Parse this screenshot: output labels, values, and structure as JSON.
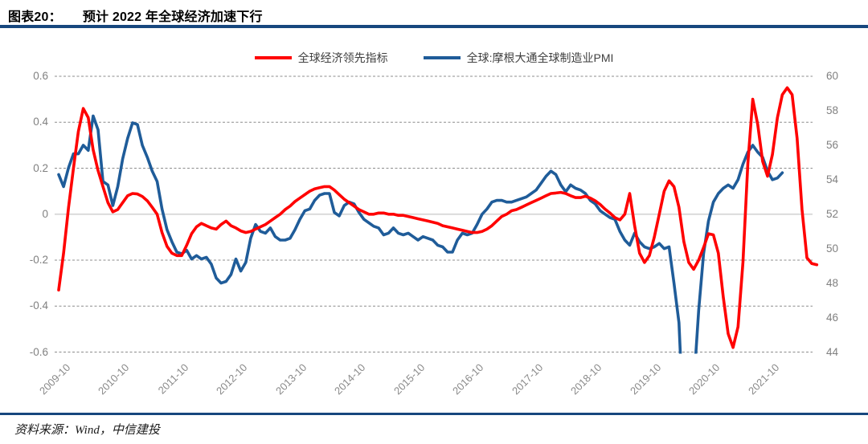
{
  "header": {
    "figure_label": "图表20：",
    "figure_title": "预计 2022 年全球经济加速下行"
  },
  "footer": {
    "source": "资料来源：Wind，中信建投"
  },
  "colors": {
    "rule_navy": "#17477E",
    "series_red": "#FF0000",
    "series_blue": "#1F5C99",
    "grid_dash": "#8C8C8C",
    "grid_zero": "#D9D9D9",
    "axis_label_gray": "#808080"
  },
  "legend": [
    {
      "label": "全球经济领先指标",
      "color": "#FF0000"
    },
    {
      "label": "全球:摩根大通全球制造业PMI",
      "color": "#1F5C99"
    }
  ],
  "chart_data": {
    "type": "line",
    "x_start": "2009-10",
    "x_frequency": "monthly",
    "x_tick_labels": [
      "2009-10",
      "2010-10",
      "2011-10",
      "2012-10",
      "2013-10",
      "2014-10",
      "2015-10",
      "2016-10",
      "2017-10",
      "2018-10",
      "2019-10",
      "2020-10",
      "2021-10"
    ],
    "left_axis": {
      "min": -0.6,
      "max": 0.6,
      "ticks": [
        "0.6",
        "0.4",
        "0.2",
        "0",
        "-0.2",
        "-0.4",
        "-0.6"
      ]
    },
    "right_axis": {
      "min": 44,
      "max": 60,
      "ticks": [
        "60",
        "58",
        "56",
        "54",
        "52",
        "50",
        "48",
        "46",
        "44"
      ]
    },
    "grid": {
      "horizontal": "dashed",
      "zero_line": "solid"
    },
    "legend_position": "top-center",
    "series": [
      {
        "name": "全球经济领先指标",
        "axis": "left",
        "color": "#FF0000",
        "values": [
          -0.33,
          -0.17,
          0.03,
          0.2,
          0.36,
          0.46,
          0.42,
          0.28,
          0.19,
          0.12,
          0.05,
          0.01,
          0.02,
          0.05,
          0.08,
          0.09,
          0.088,
          0.077,
          0.058,
          0.03,
          0.0,
          -0.08,
          -0.14,
          -0.17,
          -0.18,
          -0.18,
          -0.135,
          -0.085,
          -0.055,
          -0.04,
          -0.05,
          -0.06,
          -0.065,
          -0.045,
          -0.03,
          -0.05,
          -0.06,
          -0.073,
          -0.08,
          -0.075,
          -0.065,
          -0.055,
          -0.045,
          -0.03,
          -0.015,
          0.0,
          0.02,
          0.035,
          0.055,
          0.07,
          0.085,
          0.1,
          0.11,
          0.115,
          0.12,
          0.12,
          0.105,
          0.085,
          0.065,
          0.05,
          0.035,
          0.02,
          0.01,
          0.0,
          0.0,
          0.005,
          0.005,
          0.0,
          0.0,
          -0.005,
          -0.005,
          -0.01,
          -0.015,
          -0.02,
          -0.025,
          -0.03,
          -0.035,
          -0.04,
          -0.05,
          -0.055,
          -0.06,
          -0.065,
          -0.07,
          -0.075,
          -0.08,
          -0.08,
          -0.075,
          -0.065,
          -0.05,
          -0.03,
          -0.01,
          0.0,
          0.015,
          0.02,
          0.03,
          0.04,
          0.05,
          0.06,
          0.07,
          0.08,
          0.09,
          0.092,
          0.095,
          0.09,
          0.08,
          0.072,
          0.072,
          0.078,
          0.07,
          0.058,
          0.042,
          0.022,
          0.005,
          -0.015,
          -0.025,
          0.0,
          0.09,
          -0.05,
          -0.17,
          -0.21,
          -0.18,
          -0.1,
          0.0,
          0.1,
          0.145,
          0.12,
          0.03,
          -0.12,
          -0.21,
          -0.24,
          -0.2,
          -0.145,
          -0.085,
          -0.09,
          -0.17,
          -0.36,
          -0.52,
          -0.58,
          -0.49,
          -0.21,
          0.22,
          0.5,
          0.39,
          0.23,
          0.165,
          0.26,
          0.42,
          0.52,
          0.55,
          0.52,
          0.33,
          0.02,
          -0.19,
          -0.215,
          -0.22
        ]
      },
      {
        "name": "全球:摩根大通全球制造业PMI",
        "axis": "right",
        "color": "#1F5C99",
        "values": [
          54.3,
          53.6,
          54.7,
          55.5,
          55.5,
          56.0,
          55.7,
          57.7,
          56.9,
          53.9,
          53.7,
          52.5,
          53.6,
          55.2,
          56.4,
          57.3,
          57.2,
          56.0,
          55.3,
          54.5,
          53.9,
          52.3,
          51.1,
          50.4,
          49.8,
          49.7,
          49.9,
          49.4,
          49.6,
          49.4,
          49.5,
          49.1,
          48.3,
          48.0,
          48.1,
          48.5,
          49.4,
          48.7,
          49.2,
          50.6,
          51.4,
          51.0,
          50.9,
          51.2,
          50.7,
          50.5,
          50.5,
          50.6,
          51.1,
          51.7,
          52.2,
          52.3,
          52.8,
          53.1,
          53.2,
          53.2,
          52.1,
          51.9,
          52.5,
          52.7,
          52.6,
          52.1,
          51.7,
          51.5,
          51.3,
          51.2,
          50.8,
          50.9,
          51.2,
          50.9,
          50.8,
          50.9,
          50.7,
          50.5,
          50.7,
          50.6,
          50.5,
          50.2,
          50.1,
          49.8,
          49.8,
          50.5,
          50.9,
          50.8,
          50.9,
          51.4,
          52.0,
          52.3,
          52.7,
          52.8,
          52.8,
          52.7,
          52.7,
          52.8,
          52.9,
          53.0,
          53.2,
          53.4,
          53.8,
          54.2,
          54.5,
          54.3,
          53.7,
          53.3,
          53.7,
          53.5,
          53.4,
          53.2,
          52.8,
          52.6,
          52.2,
          52.0,
          51.8,
          51.7,
          51.0,
          50.5,
          50.2,
          50.9,
          50.4,
          50.1,
          50.0,
          50.1,
          50.3,
          50.0,
          50.1,
          48.0,
          45.7,
          39.3,
          38.0,
          42.0,
          46.4,
          49.7,
          51.6,
          52.7,
          53.2,
          53.5,
          53.7,
          53.5,
          54.0,
          54.9,
          55.6,
          56.0,
          55.6,
          55.3,
          54.5,
          54.0,
          54.1,
          54.4
        ]
      }
    ]
  }
}
